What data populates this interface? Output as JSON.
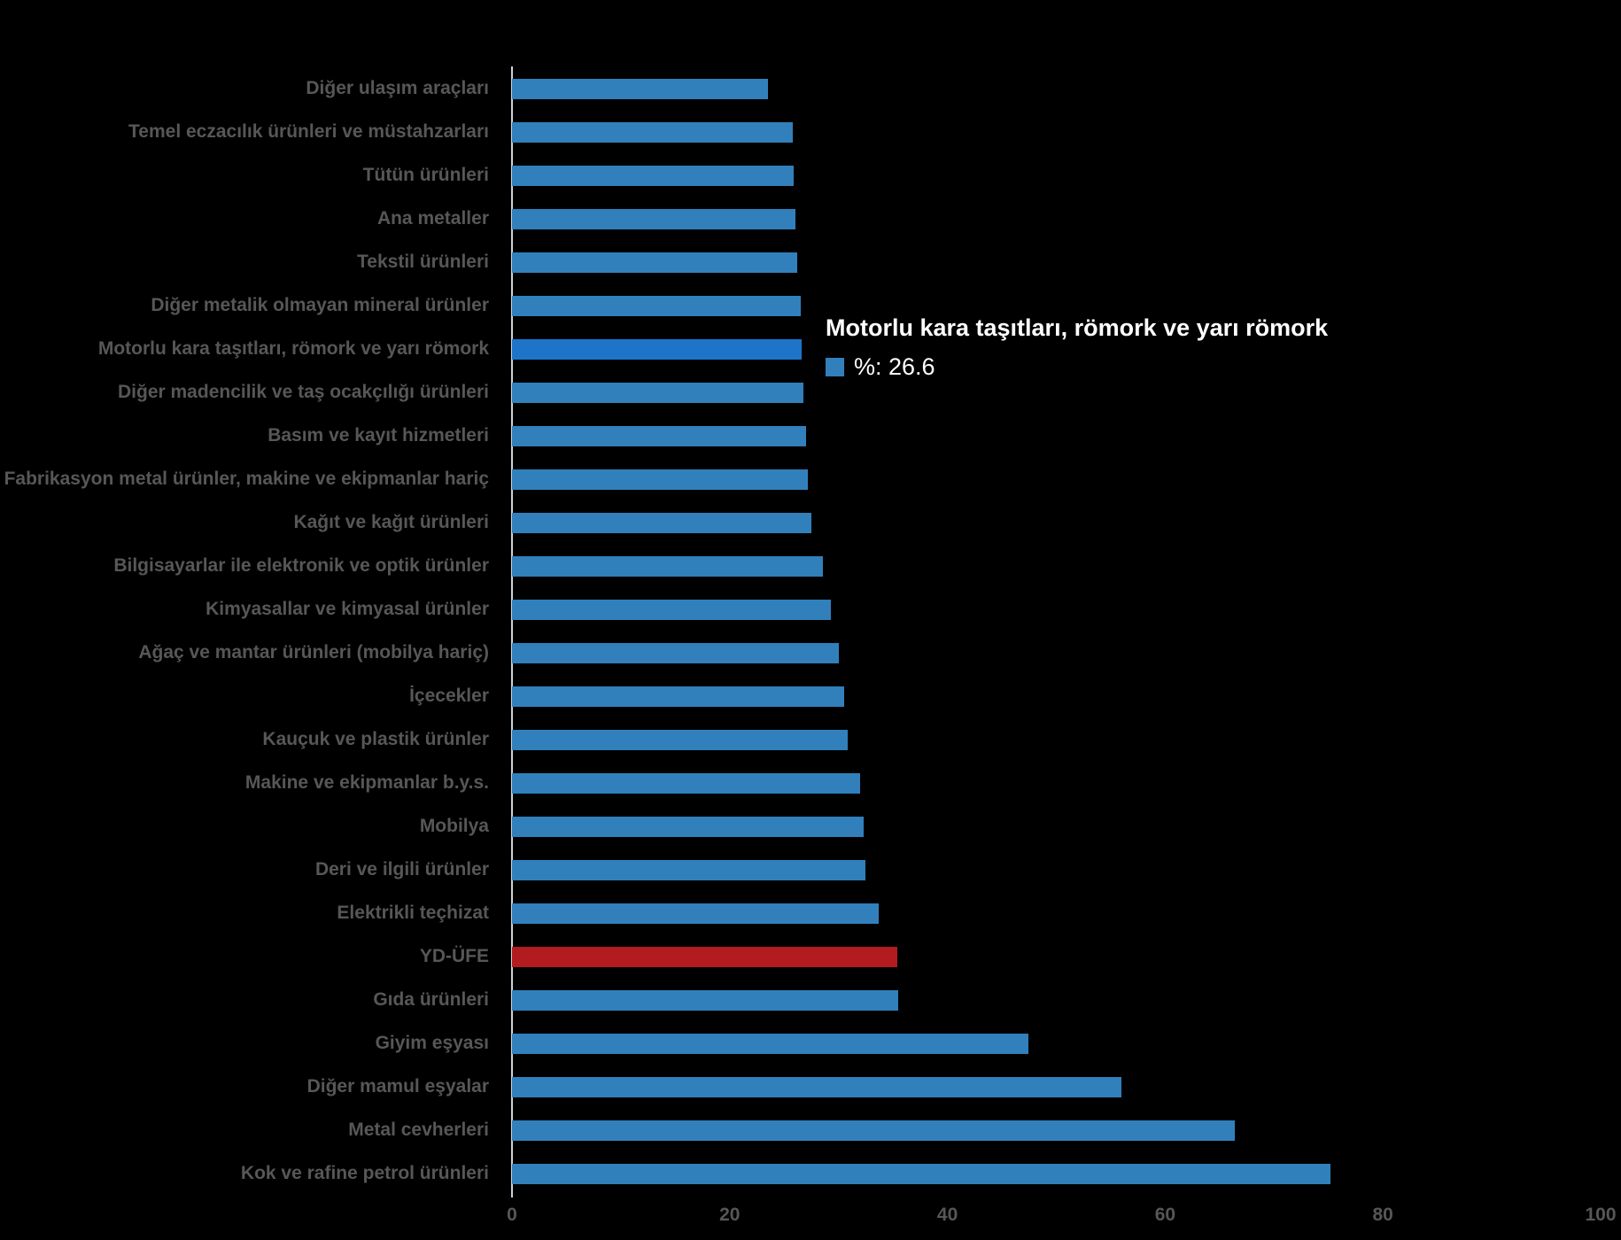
{
  "chart_data": {
    "type": "bar",
    "orientation": "horizontal",
    "title": "",
    "xlabel": "",
    "ylabel": "",
    "xlim": [
      0,
      100
    ],
    "x_ticks": [
      0,
      20,
      40,
      60,
      80,
      100
    ],
    "grid": false,
    "legend_position": "none",
    "unit": "%",
    "categories": [
      "Diğer ulaşım araçları",
      "Temel eczacılık ürünleri ve müstahzarları",
      "Tütün ürünleri",
      "Ana metaller",
      "Tekstil ürünleri",
      "Diğer metalik olmayan mineral ürünler",
      "Motorlu kara taşıtları, römork ve yarı römork",
      "Diğer madencilik ve taş ocakçılığı ürünleri",
      "Basım ve kayıt hizmetleri",
      "Fabrikasyon metal ürünler, makine ve ekipmanlar hariç",
      "Kağıt ve kağıt ürünleri",
      "Bilgisayarlar ile elektronik ve optik ürünler",
      "Kimyasallar ve kimyasal ürünler",
      "Ağaç ve mantar ürünleri (mobilya hariç)",
      "İçecekler",
      "Kauçuk ve plastik ürünler",
      "Makine ve ekipmanlar b.y.s.",
      "Mobilya",
      "Deri ve ilgili ürünler",
      "Elektrikli teçhizat",
      "YD-ÜFE",
      "Gıda ürünleri",
      "Giyim eşyası",
      "Diğer mamul eşyalar",
      "Metal cevherleri",
      "Kok ve rafine petrol ürünleri"
    ],
    "values": [
      23.5,
      25.8,
      25.9,
      26.0,
      26.2,
      26.5,
      26.6,
      26.8,
      27.0,
      27.2,
      27.5,
      28.6,
      29.3,
      30.0,
      30.5,
      30.8,
      32.0,
      32.3,
      32.5,
      33.7,
      35.4,
      35.5,
      47.4,
      56.0,
      66.4,
      75.2
    ],
    "highlight_index": 6,
    "emphasis_index": 20,
    "colors": {
      "bar": "#3180BC",
      "bar_hover": "#1D74C8",
      "bar_emphasis": "#B21B20",
      "label_text": "#575757",
      "tick_text": "#575757",
      "axis_line": "#C9D4DA",
      "background": "#000000"
    }
  },
  "tooltip": {
    "title": "Motorlu kara taşıtları, römork ve yarı römork",
    "value_label": "%: 26.6",
    "value": 26.6,
    "text_color": "#FFFFFF",
    "marker_color": "#3180BC"
  }
}
